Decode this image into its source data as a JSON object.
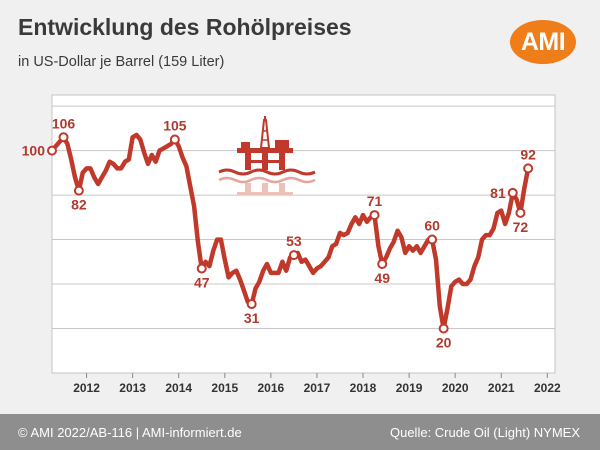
{
  "header": {
    "title": "Entwicklung des Rohölpreises",
    "subtitle": "in US-Dollar je Barrel (159 Liter)",
    "logo_text": "AMI"
  },
  "footer": {
    "left": "© AMI 2022/AB-116 | AMI-informiert.de",
    "right": "Quelle: Crude Oil (Light) NYMEX"
  },
  "colors": {
    "line": "#c0392b",
    "label": "#b03a2e",
    "logo": "#ef7d1a",
    "footer": "#8e8e8e"
  },
  "icons": [
    "oil-rig-icon"
  ],
  "chart_data": {
    "type": "line",
    "title": "Entwicklung des Rohölpreises",
    "subtitle": "in US-Dollar je Barrel (159 Liter)",
    "xlabel": "",
    "ylabel": "",
    "x_ticks": [
      "2012",
      "2013",
      "2014",
      "2015",
      "2016",
      "2017",
      "2018",
      "2019",
      "2020",
      "2021",
      "2022"
    ],
    "xlim": [
      "2011-10",
      "2022-09"
    ],
    "ylim": [
      0,
      125
    ],
    "grid": "horizontal",
    "series": [
      {
        "points": [
          [
            "2011-10",
            100
          ],
          [
            "2011-11",
            102
          ],
          [
            "2012-01",
            106
          ],
          [
            "2012-02",
            103
          ],
          [
            "2012-03",
            96
          ],
          [
            "2012-04",
            88
          ],
          [
            "2012-05",
            82
          ],
          [
            "2012-06",
            90
          ],
          [
            "2012-07",
            92
          ],
          [
            "2012-08",
            92
          ],
          [
            "2012-09",
            88
          ],
          [
            "2012-10",
            85
          ],
          [
            "2012-11",
            88
          ],
          [
            "2012-12",
            91
          ],
          [
            "2013-01",
            95
          ],
          [
            "2013-02",
            94
          ],
          [
            "2013-03",
            92
          ],
          [
            "2013-04",
            92
          ],
          [
            "2013-05",
            95
          ],
          [
            "2013-06",
            96
          ],
          [
            "2013-07",
            106
          ],
          [
            "2013-08",
            107
          ],
          [
            "2013-09",
            105
          ],
          [
            "2013-10",
            99
          ],
          [
            "2013-11",
            94
          ],
          [
            "2013-12",
            98
          ],
          [
            "2014-01",
            95
          ],
          [
            "2014-02",
            100
          ],
          [
            "2014-03",
            101
          ],
          [
            "2014-04",
            102
          ],
          [
            "2014-05",
            103
          ],
          [
            "2014-06",
            105
          ],
          [
            "2014-07",
            102
          ],
          [
            "2014-08",
            97
          ],
          [
            "2014-09",
            93
          ],
          [
            "2014-10",
            84
          ],
          [
            "2014-11",
            75
          ],
          [
            "2014-12",
            59
          ],
          [
            "2015-01",
            47
          ],
          [
            "2015-02",
            50
          ],
          [
            "2015-03",
            48
          ],
          [
            "2015-04",
            55
          ],
          [
            "2015-05",
            60
          ],
          [
            "2015-06",
            60
          ],
          [
            "2015-07",
            51
          ],
          [
            "2015-08",
            43
          ],
          [
            "2015-09",
            45
          ],
          [
            "2015-10",
            46
          ],
          [
            "2015-11",
            42
          ],
          [
            "2015-12",
            37
          ],
          [
            "2016-01",
            32
          ],
          [
            "2016-02",
            31
          ],
          [
            "2016-03",
            38
          ],
          [
            "2016-04",
            41
          ],
          [
            "2016-05",
            46
          ],
          [
            "2016-06",
            49
          ],
          [
            "2016-07",
            45
          ],
          [
            "2016-08",
            45
          ],
          [
            "2016-09",
            45
          ],
          [
            "2016-10",
            50
          ],
          [
            "2016-11",
            46
          ],
          [
            "2016-12",
            52
          ],
          [
            "2017-01",
            53
          ],
          [
            "2017-02",
            54
          ],
          [
            "2017-03",
            50
          ],
          [
            "2017-04",
            51
          ],
          [
            "2017-05",
            48
          ],
          [
            "2017-06",
            45
          ],
          [
            "2017-07",
            47
          ],
          [
            "2017-08",
            48
          ],
          [
            "2017-09",
            50
          ],
          [
            "2017-10",
            52
          ],
          [
            "2017-11",
            57
          ],
          [
            "2017-12",
            58
          ],
          [
            "2018-01",
            63
          ],
          [
            "2018-02",
            62
          ],
          [
            "2018-03",
            63
          ],
          [
            "2018-04",
            67
          ],
          [
            "2018-05",
            70
          ],
          [
            "2018-06",
            67
          ],
          [
            "2018-07",
            71
          ],
          [
            "2018-08",
            68
          ],
          [
            "2018-09",
            70
          ],
          [
            "2018-10",
            71
          ],
          [
            "2018-11",
            57
          ],
          [
            "2018-12",
            49
          ],
          [
            "2019-01",
            52
          ],
          [
            "2019-02",
            56
          ],
          [
            "2019-03",
            59
          ],
          [
            "2019-04",
            64
          ],
          [
            "2019-05",
            61
          ],
          [
            "2019-06",
            54
          ],
          [
            "2019-07",
            57
          ],
          [
            "2019-08",
            55
          ],
          [
            "2019-09",
            57
          ],
          [
            "2019-10",
            54
          ],
          [
            "2019-11",
            57
          ],
          [
            "2019-12",
            60
          ],
          [
            "2020-01",
            60
          ],
          [
            "2020-02",
            51
          ],
          [
            "2020-03",
            30
          ],
          [
            "2020-04",
            20
          ],
          [
            "2020-05",
            29
          ],
          [
            "2020-06",
            39
          ],
          [
            "2020-07",
            41
          ],
          [
            "2020-08",
            42
          ],
          [
            "2020-09",
            40
          ],
          [
            "2020-10",
            40
          ],
          [
            "2020-11",
            42
          ],
          [
            "2020-12",
            48
          ],
          [
            "2021-01",
            52
          ],
          [
            "2021-02",
            60
          ],
          [
            "2021-03",
            62
          ],
          [
            "2021-04",
            62
          ],
          [
            "2021-05",
            65
          ],
          [
            "2021-06",
            72
          ],
          [
            "2021-07",
            73
          ],
          [
            "2021-08",
            67
          ],
          [
            "2021-09",
            72
          ],
          [
            "2021-10",
            81
          ],
          [
            "2021-11",
            78
          ],
          [
            "2021-12",
            72
          ],
          [
            "2022-01",
            83
          ],
          [
            "2022-02",
            92
          ]
        ]
      }
    ],
    "annotations": [
      {
        "x": "2011-10",
        "y": 100,
        "text": "100",
        "pos": "left"
      },
      {
        "x": "2012-01",
        "y": 106,
        "text": "106",
        "pos": "above"
      },
      {
        "x": "2012-05",
        "y": 82,
        "text": "82",
        "pos": "below"
      },
      {
        "x": "2014-06",
        "y": 105,
        "text": "105",
        "pos": "above"
      },
      {
        "x": "2015-01",
        "y": 47,
        "text": "47",
        "pos": "below"
      },
      {
        "x": "2016-02",
        "y": 31,
        "text": "31",
        "pos": "below"
      },
      {
        "x": "2017-01",
        "y": 53,
        "text": "53",
        "pos": "above"
      },
      {
        "x": "2018-10",
        "y": 71,
        "text": "71",
        "pos": "above"
      },
      {
        "x": "2018-12",
        "y": 49,
        "text": "49",
        "pos": "below"
      },
      {
        "x": "2020-01",
        "y": 60,
        "text": "60",
        "pos": "above"
      },
      {
        "x": "2020-04",
        "y": 20,
        "text": "20",
        "pos": "below"
      },
      {
        "x": "2021-10",
        "y": 81,
        "text": "81",
        "pos": "left"
      },
      {
        "x": "2021-12",
        "y": 72,
        "text": "72",
        "pos": "below"
      },
      {
        "x": "2022-02",
        "y": 92,
        "text": "92",
        "pos": "above"
      }
    ]
  }
}
